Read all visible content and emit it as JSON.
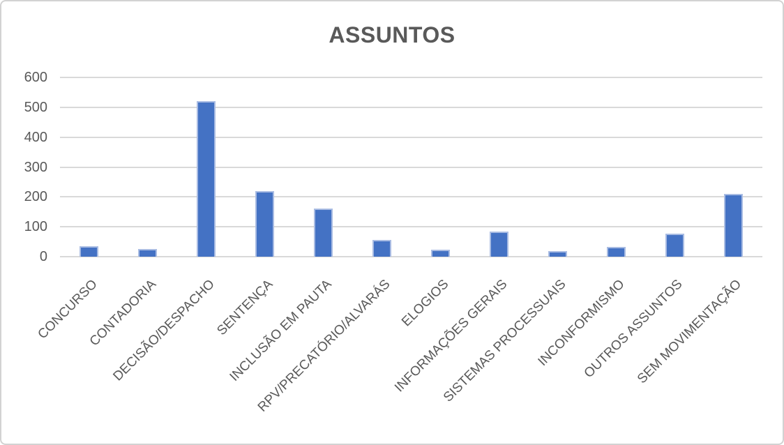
{
  "chart_title": "ASSUNTOS",
  "colors": {
    "bar_fill": "#4472c4",
    "bar_edge": "#a9bce3",
    "gridline": "#d9d9d9",
    "text": "#595959",
    "frame_border": "#d2d2d2",
    "background": "#ffffff"
  },
  "chart_data": {
    "type": "bar",
    "title": "ASSUNTOS",
    "categories": [
      "CONCURSO",
      "CONTADORIA",
      "DECISÃO/DESPACHO",
      "SENTENÇA",
      "INCLUSÃO EM PAUTA",
      "RPV/PRECATÓRIO/ALVARÁS",
      "ELOGIOS",
      "INFORMAÇÕES GERAIS",
      "SISTEMAS PROCESSUAIS",
      "INCONFORMISMO",
      "OUTROS ASSUNTOS",
      "SEM MOVIMENTAÇÃO"
    ],
    "values": [
      36,
      25,
      520,
      220,
      160,
      55,
      24,
      84,
      18,
      33,
      78,
      210
    ],
    "xlabel": "",
    "ylabel": "",
    "ylim": [
      0,
      600
    ],
    "yticks": [
      0,
      100,
      200,
      300,
      400,
      500,
      600
    ],
    "grid": true,
    "legend_position": "none",
    "x_label_rotation_deg": 45
  }
}
